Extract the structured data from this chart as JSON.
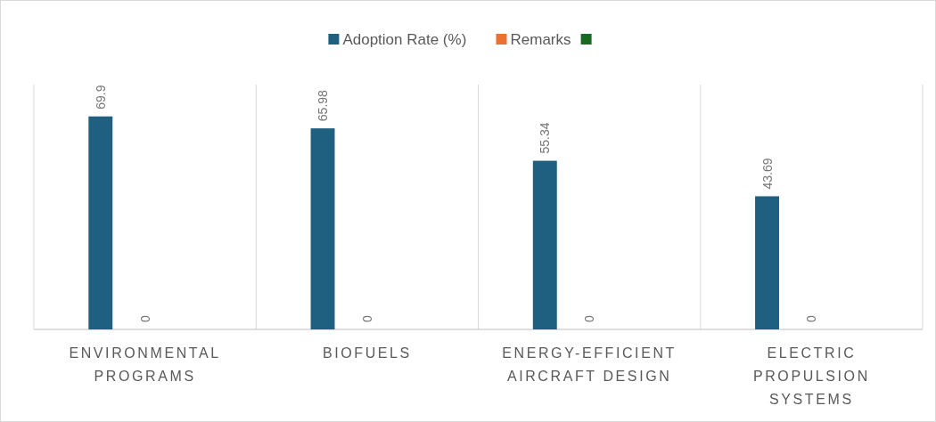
{
  "chart_data": {
    "type": "bar",
    "categories": [
      "ENVIRONMENTAL PROGRAMS",
      "BIOFUELS",
      "ENERGY-EFFICIENT AIRCRAFT DESIGN",
      "ELECTRIC PROPULSION SYSTEMS"
    ],
    "series": [
      {
        "name": "Adoption Rate (%)",
        "color": "#1f5f7f",
        "values": [
          69.9,
          65.98,
          55.34,
          43.69
        ]
      },
      {
        "name": "Remarks",
        "color": "#e97132",
        "values": [
          0,
          0,
          0,
          0
        ]
      },
      {
        "color": "#196b24",
        "values": [
          null,
          null,
          null,
          null
        ]
      }
    ],
    "data_labels": true,
    "grid": "x",
    "legend": "top",
    "tick_labels": "x"
  }
}
